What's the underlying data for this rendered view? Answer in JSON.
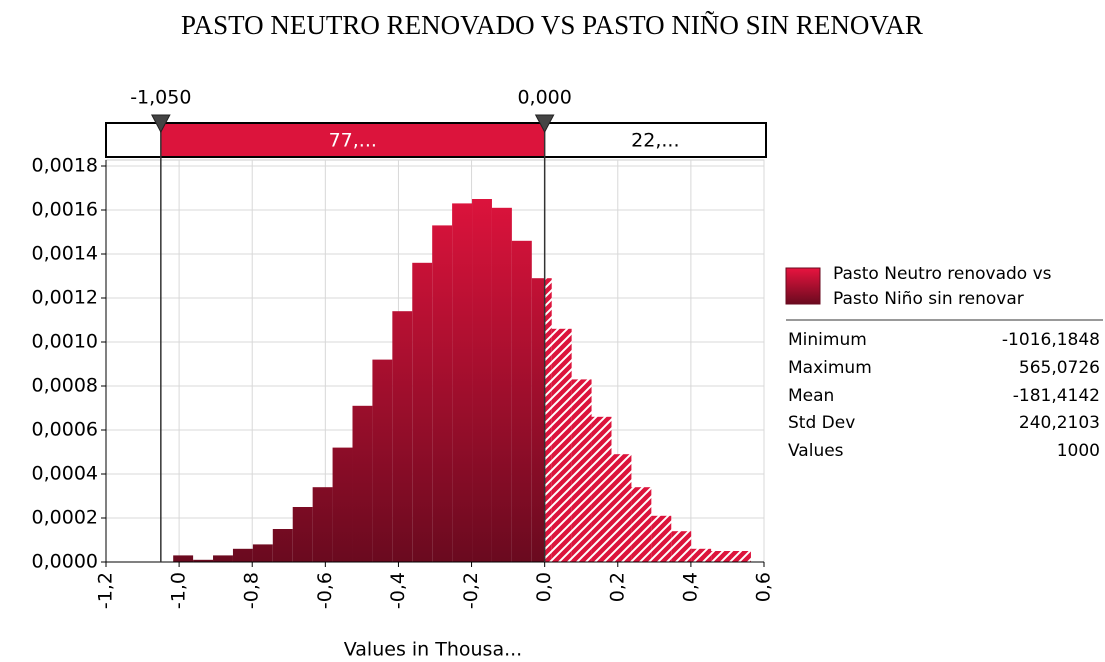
{
  "chart_data": {
    "type": "histogram",
    "title": "PASTO NEUTRO RENOVADO VS PASTO NIÑO SIN RENOVAR",
    "x_label": "Values in Thousa...",
    "bins": [
      -1.0162,
      -0.9617,
      -0.9072,
      -0.8527,
      -0.7982,
      -0.7437,
      -0.6892,
      -0.6347,
      -0.5802,
      -0.5257,
      -0.4712,
      -0.4167,
      -0.3622,
      -0.3077,
      -0.2532,
      -0.1987,
      -0.1442,
      -0.0897,
      -0.0352,
      0.0193,
      0.0738,
      0.1283,
      0.1828,
      0.2373,
      0.2918,
      0.3463,
      0.4008,
      0.4553,
      0.5098,
      0.5643
    ],
    "values": [
      3e-05,
      1e-05,
      3e-05,
      6e-05,
      8e-05,
      0.00015,
      0.00025,
      0.00034,
      0.00052,
      0.00071,
      0.00092,
      0.00114,
      0.00136,
      0.00153,
      0.00163,
      0.00165,
      0.00161,
      0.00146,
      0.00129,
      0.00106,
      0.00083,
      0.00066,
      0.00049,
      0.00034,
      0.00021,
      0.00014,
      6e-05,
      5e-05,
      5e-05
    ],
    "color": "#dc143c",
    "xlim": [
      -1.2,
      0.6
    ],
    "xticks": [
      {
        "value": -1.2,
        "label": "-1,2"
      },
      {
        "value": -1.0,
        "label": "-1,0"
      },
      {
        "value": -0.8,
        "label": "-0,8"
      },
      {
        "value": -0.6,
        "label": "-0,6"
      },
      {
        "value": -0.4,
        "label": "-0,4"
      },
      {
        "value": -0.2,
        "label": "-0,2"
      },
      {
        "value": 0,
        "label": "0,0"
      },
      {
        "value": 0.2,
        "label": "0,2"
      },
      {
        "value": 0.4,
        "label": "0,4"
      },
      {
        "value": 0.6,
        "label": "0,6"
      }
    ],
    "ylim": [
      0,
      0.0018
    ],
    "yticks": [
      {
        "value": 0,
        "label": "0,0000"
      },
      {
        "value": 0.0002,
        "label": "0,0002"
      },
      {
        "value": 0.0004,
        "label": "0,0004"
      },
      {
        "value": 0.0006,
        "label": "0,0006"
      },
      {
        "value": 0.0008,
        "label": "0,0008"
      },
      {
        "value": 0.001,
        "label": "0,0010"
      },
      {
        "value": 0.0012,
        "label": "0,0012"
      },
      {
        "value": 0.0014,
        "label": "0,0014"
      },
      {
        "value": 0.0016,
        "label": "0,0016"
      },
      {
        "value": 0.0018,
        "label": "0,0018"
      }
    ],
    "grid": true,
    "delimiters": [
      {
        "value": -1.05,
        "label": "-1,050"
      },
      {
        "value": 0,
        "label": "0,000"
      }
    ],
    "region_labels": [
      "77,...",
      "22,..."
    ],
    "legend": {
      "name": "Pasto Neutro renovado vs Pasto Niño sin renovar"
    },
    "stats": [
      {
        "label": "Minimum",
        "value": "-1016,1848"
      },
      {
        "label": "Maximum",
        "value": "565,0726"
      },
      {
        "label": "Mean",
        "value": "-181,4142"
      },
      {
        "label": "Std Dev",
        "value": "240,2103"
      },
      {
        "label": "Values",
        "value": "1000"
      }
    ]
  }
}
